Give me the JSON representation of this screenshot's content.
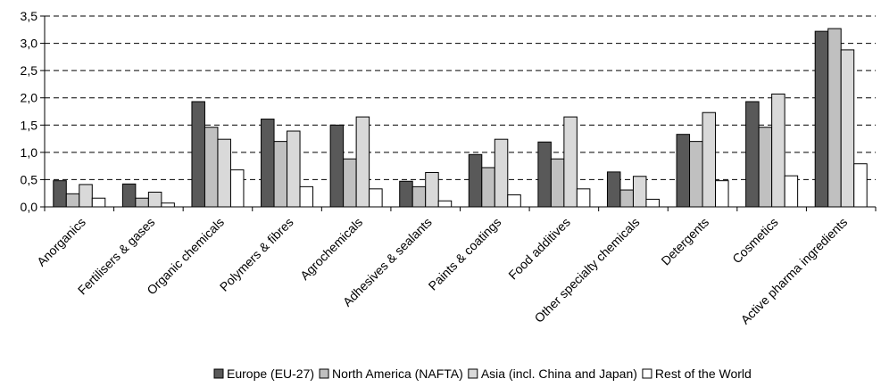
{
  "chart_data": {
    "type": "bar",
    "categories": [
      "Anorganics",
      "Fertilisers & gases",
      "Organic chemicals",
      "Polymers & fibres",
      "Agrochemicals",
      "Adhesives & sealants",
      "Paints & coatings",
      "Food additives",
      "Other specialty chemicals",
      "Detergents",
      "Cosmetics",
      "Active pharma ingredients"
    ],
    "series": [
      {
        "name": "Europe (EU-27)",
        "color": "#595959",
        "values": [
          0.48,
          0.42,
          1.93,
          1.61,
          1.5,
          0.47,
          0.96,
          1.19,
          0.64,
          1.33,
          1.93,
          3.22
        ]
      },
      {
        "name": "North America (NAFTA)",
        "color": "#c0c0c0",
        "values": [
          0.24,
          0.16,
          1.46,
          1.2,
          0.88,
          0.37,
          0.72,
          0.88,
          0.31,
          1.2,
          1.46,
          3.27
        ]
      },
      {
        "name": "Asia (incl. China and Japan)",
        "color": "#d9d9d9",
        "values": [
          0.41,
          0.27,
          1.24,
          1.39,
          1.65,
          0.63,
          1.24,
          1.65,
          0.56,
          1.73,
          2.07,
          2.88
        ]
      },
      {
        "name": "Rest of the World",
        "color": "#ffffff",
        "values": [
          0.16,
          0.07,
          0.68,
          0.37,
          0.33,
          0.11,
          0.22,
          0.33,
          0.14,
          0.48,
          0.57,
          0.79
        ]
      }
    ],
    "yticks": [
      "0,0",
      "0,5",
      "1,0",
      "1,5",
      "2,0",
      "2,5",
      "3,0",
      "3,5"
    ],
    "ylim": [
      0,
      3.5
    ],
    "grid": true,
    "legend_position": "bottom",
    "title": "",
    "xlabel": "",
    "ylabel": ""
  }
}
